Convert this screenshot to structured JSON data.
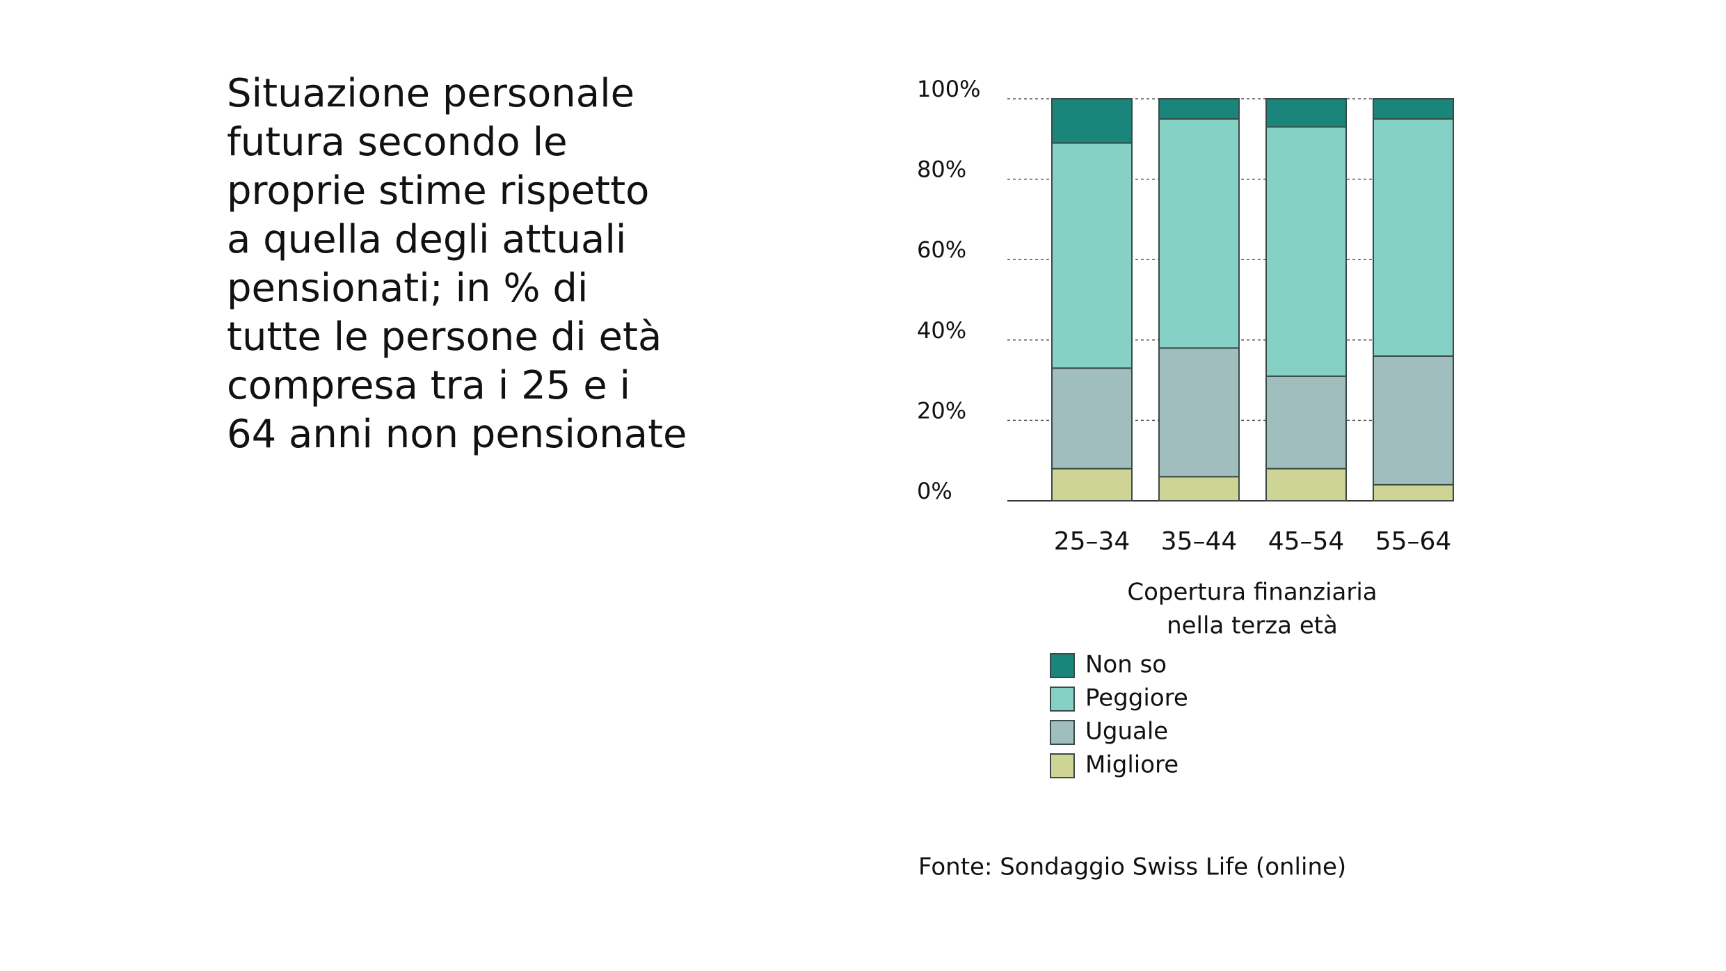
{
  "chart_data": {
    "type": "stacked_bar",
    "title": [
      "Situazione personale",
      "futura secondo le",
      "proprie stime rispetto",
      "a quella degli attuali",
      "pensionati; in % di",
      "tutte le persone di età",
      "compresa tra i 25 e i",
      "64 anni non pensionate"
    ],
    "x_label": [
      "Copertura finanziaria",
      "nella terza età"
    ],
    "categories": [
      "25–34",
      "35–44",
      "45–54",
      "55–64"
    ],
    "series": [
      {
        "name": "Migliore",
        "color": "#cdd494",
        "values": [
          8,
          6,
          8,
          4
        ]
      },
      {
        "name": "Uguale",
        "color": "#a0bebd",
        "values": [
          25,
          32,
          23,
          32
        ]
      },
      {
        "name": "Peggiore",
        "color": "#86d1c6",
        "values": [
          56,
          57,
          62,
          59
        ]
      },
      {
        "name": "Non so",
        "color": "#1a857a",
        "values": [
          11,
          5,
          7,
          5
        ]
      }
    ],
    "ylim": [
      0,
      100
    ],
    "yticks": [
      {
        "value": 0,
        "label": "0%"
      },
      {
        "value": 20,
        "label": "20%"
      },
      {
        "value": 40,
        "label": "40%"
      },
      {
        "value": 60,
        "label": "60%"
      },
      {
        "value": 80,
        "label": "80%"
      },
      {
        "value": 100,
        "label": "100%"
      }
    ],
    "grid": true,
    "source": "Fonte: Sondaggio Swiss Life (online)"
  }
}
